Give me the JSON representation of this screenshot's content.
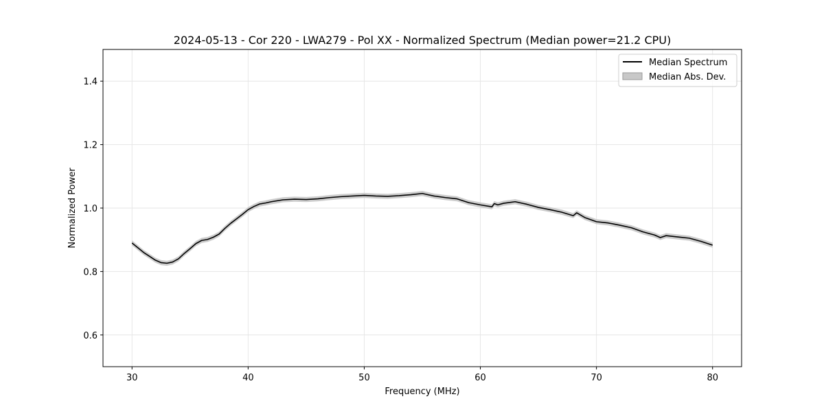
{
  "chart_data": {
    "type": "line",
    "title": "2024-05-13 - Cor 220 - LWA279 - Pol XX - Normalized Spectrum (Median power=21.2 CPU)",
    "xlabel": "Frequency (MHz)",
    "ylabel": "Normalized Power",
    "xlim": [
      27.5,
      82.5
    ],
    "ylim": [
      0.5,
      1.5
    ],
    "xticks": [
      30,
      40,
      50,
      60,
      70,
      80
    ],
    "yticks": [
      0.6,
      0.8,
      1.0,
      1.2,
      1.4
    ],
    "grid": true,
    "legend_position": "top-right",
    "series": [
      {
        "name": "Median Spectrum",
        "style": "line",
        "color": "#000000",
        "x": [
          30,
          30.5,
          31,
          31.5,
          32,
          32.5,
          33,
          33.5,
          34,
          34.5,
          35,
          35.5,
          36,
          36.5,
          37,
          37.5,
          38,
          38.5,
          39,
          39.5,
          40,
          40.5,
          41,
          41.5,
          42,
          42.5,
          43,
          44,
          45,
          46,
          47,
          48,
          49,
          50,
          51,
          52,
          53,
          54,
          54.5,
          55,
          55.5,
          56,
          57,
          58,
          59,
          60,
          61,
          61.2,
          61.5,
          62,
          63,
          64,
          65,
          66,
          67,
          68,
          68.3,
          69,
          70,
          71,
          72,
          73,
          74,
          75,
          75.5,
          76,
          77,
          78,
          79,
          80
        ],
        "y": [
          0.89,
          0.875,
          0.86,
          0.848,
          0.836,
          0.828,
          0.826,
          0.83,
          0.84,
          0.857,
          0.872,
          0.888,
          0.898,
          0.901,
          0.908,
          0.918,
          0.936,
          0.952,
          0.966,
          0.98,
          0.995,
          1.005,
          1.013,
          1.016,
          1.02,
          1.023,
          1.026,
          1.028,
          1.027,
          1.029,
          1.033,
          1.036,
          1.038,
          1.04,
          1.038,
          1.037,
          1.039,
          1.042,
          1.044,
          1.046,
          1.042,
          1.038,
          1.033,
          1.029,
          1.017,
          1.01,
          1.004,
          1.014,
          1.01,
          1.015,
          1.02,
          1.012,
          1.002,
          0.995,
          0.987,
          0.976,
          0.985,
          0.97,
          0.957,
          0.953,
          0.946,
          0.938,
          0.925,
          0.915,
          0.907,
          0.913,
          0.909,
          0.905,
          0.895,
          0.883
        ]
      },
      {
        "name": "Median Abs. Dev.",
        "style": "band",
        "color": "#c8c8c8",
        "half_width": 0.008
      }
    ]
  }
}
